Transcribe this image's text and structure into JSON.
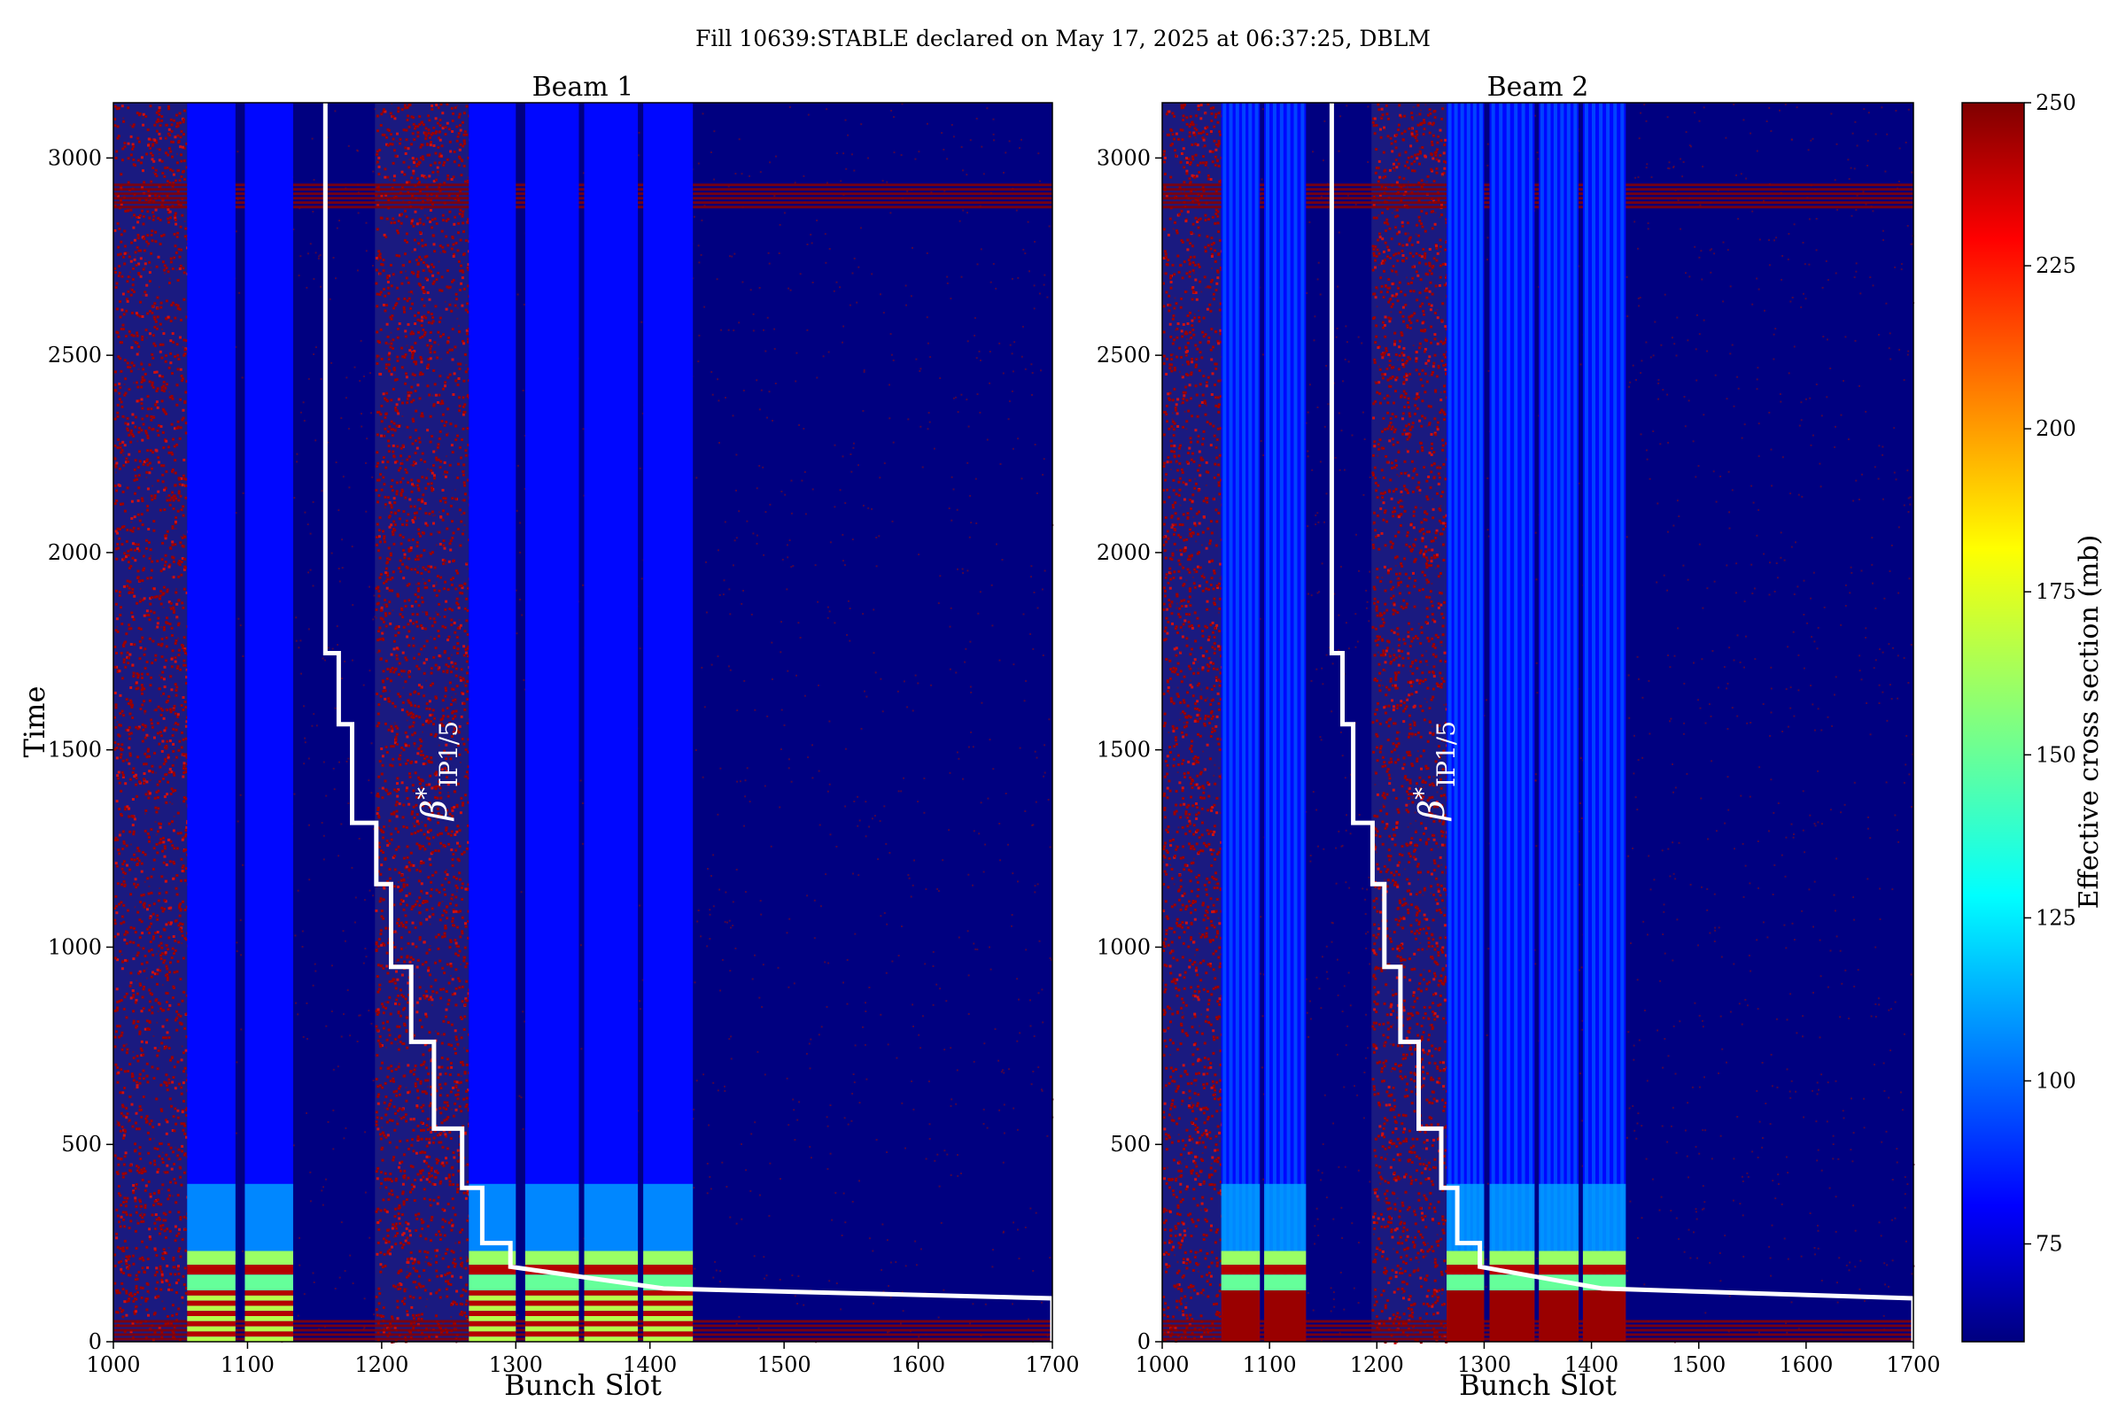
{
  "figure": {
    "title": "Fill 10639:STABLE declared on May 17, 2025 at 06:37:25, DBLM"
  },
  "colorbar": {
    "label": "Effective cross section (mb)",
    "range": [
      60,
      250
    ],
    "ticks": [
      "75",
      "100",
      "125",
      "150",
      "175",
      "200",
      "225",
      "250"
    ],
    "colormap": "jet"
  },
  "chart_data": [
    {
      "type": "heatmap",
      "title": "Beam 1",
      "xlabel": "Bunch Slot",
      "ylabel": "Time",
      "xlim": [
        1000,
        1700
      ],
      "ylim": [
        0,
        3140
      ],
      "xticks": [
        "1000",
        "1100",
        "1200",
        "1300",
        "1400",
        "1500",
        "1600",
        "1700"
      ],
      "yticks": [
        "0",
        "500",
        "1000",
        "1500",
        "2000",
        "2500",
        "3000"
      ],
      "noise_bands_x": [
        [
          1000,
          1055
        ],
        [
          1195,
          1265
        ]
      ],
      "noise_rows_y": [
        [
          2870,
          2935
        ],
        [
          0,
          55
        ]
      ],
      "trains": [
        {
          "x": [
            1055,
            1091
          ],
          "base_value": 85
        },
        {
          "x": [
            1098,
            1134
          ],
          "base_value": 85
        },
        {
          "x": [
            1265,
            1300
          ],
          "base_value": 85
        },
        {
          "x": [
            1307,
            1347
          ],
          "base_value": 85
        },
        {
          "x": [
            1351,
            1391
          ],
          "base_value": 85
        },
        {
          "x": [
            1395,
            1432
          ],
          "base_value": 85
        }
      ],
      "annotation": "β*IP1/5",
      "annotation_parts": {
        "main": "β",
        "sup": "*",
        "sub": "IP1/5"
      },
      "step_line": {
        "x": [
          1158,
          1158,
          1168,
          1168,
          1178,
          1178,
          1196,
          1196,
          1207,
          1207,
          1222,
          1222,
          1239,
          1239,
          1260,
          1260,
          1275,
          1275,
          1296,
          1296,
          1410,
          1700,
          1700
        ],
        "y": [
          3140,
          1745,
          1745,
          1565,
          1565,
          1315,
          1315,
          1160,
          1160,
          950,
          950,
          760,
          760,
          540,
          540,
          390,
          390,
          250,
          250,
          190,
          135,
          110,
          0
        ]
      }
    },
    {
      "type": "heatmap",
      "title": "Beam 2",
      "xlabel": "Bunch Slot",
      "ylabel": "",
      "xlim": [
        1000,
        1700
      ],
      "ylim": [
        0,
        3140
      ],
      "xticks": [
        "1000",
        "1100",
        "1200",
        "1300",
        "1400",
        "1500",
        "1600",
        "1700"
      ],
      "yticks": [
        "0",
        "500",
        "1000",
        "1500",
        "2000",
        "2500",
        "3000"
      ],
      "noise_bands_x": [
        [
          1000,
          1055
        ],
        [
          1195,
          1265
        ]
      ],
      "noise_rows_y": [
        [
          2870,
          2935
        ],
        [
          0,
          55
        ]
      ],
      "trains": [
        {
          "x": [
            1055,
            1091
          ],
          "base_value": 85
        },
        {
          "x": [
            1095,
            1134
          ],
          "base_value": 85
        },
        {
          "x": [
            1265,
            1300
          ],
          "base_value": 85
        },
        {
          "x": [
            1305,
            1347
          ],
          "base_value": 85
        },
        {
          "x": [
            1351,
            1388
          ],
          "base_value": 85
        },
        {
          "x": [
            1392,
            1432
          ],
          "base_value": 85
        }
      ],
      "annotation": "β*IP1/5",
      "annotation_parts": {
        "main": "β",
        "sup": "*",
        "sub": "IP1/5"
      },
      "step_line": {
        "x": [
          1158,
          1158,
          1168,
          1168,
          1178,
          1178,
          1196,
          1196,
          1207,
          1207,
          1222,
          1222,
          1239,
          1239,
          1260,
          1260,
          1275,
          1275,
          1296,
          1296,
          1410,
          1700,
          1700
        ],
        "y": [
          3140,
          1745,
          1745,
          1565,
          1565,
          1315,
          1315,
          1160,
          1160,
          950,
          950,
          760,
          760,
          540,
          540,
          390,
          390,
          250,
          250,
          190,
          135,
          110,
          0
        ]
      }
    }
  ]
}
